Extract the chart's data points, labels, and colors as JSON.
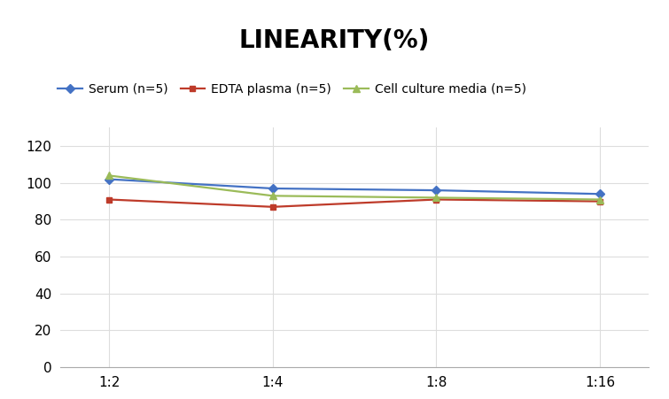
{
  "title": "LINEARITY(%)",
  "title_fontsize": 20,
  "title_fontweight": "bold",
  "x_labels": [
    "1:2",
    "1:4",
    "1:8",
    "1:16"
  ],
  "x_positions": [
    0,
    1,
    2,
    3
  ],
  "series": [
    {
      "label": "Serum (n=5)",
      "values": [
        102,
        97,
        96,
        94
      ],
      "color": "#4472C4",
      "marker": "D",
      "marker_size": 5,
      "linewidth": 1.6
    },
    {
      "label": "EDTA plasma (n=5)",
      "values": [
        91,
        87,
        91,
        90
      ],
      "color": "#BE3B2A",
      "marker": "s",
      "marker_size": 5,
      "linewidth": 1.6
    },
    {
      "label": "Cell culture media (n=5)",
      "values": [
        104,
        93,
        92,
        91
      ],
      "color": "#9BBB59",
      "marker": "^",
      "marker_size": 6,
      "linewidth": 1.6
    }
  ],
  "ylim": [
    0,
    130
  ],
  "yticks": [
    0,
    20,
    40,
    60,
    80,
    100,
    120
  ],
  "grid_color": "#DDDDDD",
  "background_color": "#FFFFFF",
  "legend_fontsize": 10,
  "axis_fontsize": 11
}
